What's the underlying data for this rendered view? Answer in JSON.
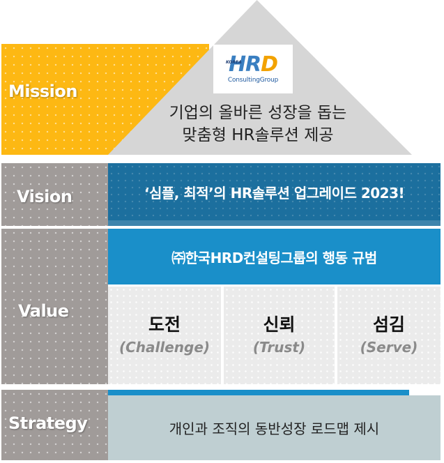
{
  "mission": {
    "label": "Mission",
    "line1": "기업의 올바른 성장을 돕는",
    "line2": "맞춤형 HR솔루션 제공",
    "logo": {
      "korea": "KOREA",
      "main_hr": "HR",
      "main_d": "D",
      "sub": "ConsultingGroup"
    }
  },
  "vision": {
    "label": "Vision",
    "text": "‘심플, 최적’의 HR솔루션 업그레이드 2023!"
  },
  "value": {
    "label": "Value",
    "header": "㈜한국HRD컨설팅그룹의 행동 규범",
    "items": [
      {
        "title": "도전",
        "subtitle": "(Challenge)"
      },
      {
        "title": "신뢰",
        "subtitle": "(Trust)"
      },
      {
        "title": "섬김",
        "subtitle": "(Serve)"
      }
    ]
  },
  "strategy": {
    "label": "Strategy",
    "text": "개인과 조직의 동반성장 로드맵 제시"
  },
  "colors": {
    "mission_gold": "#fdb813",
    "label_gray": "#a09b99",
    "vision_blue": "#1c6f9e",
    "value_blue": "#1a8fc9",
    "strategy_bg": "#bfcfd2"
  }
}
